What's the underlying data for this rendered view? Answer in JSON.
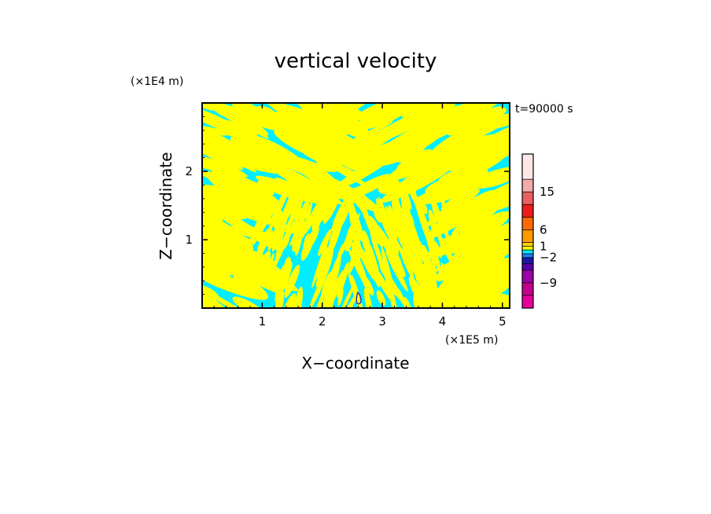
{
  "chart_data": {
    "type": "heatmap",
    "title": "vertical velocity",
    "xlabel": "X−coordinate",
    "ylabel": "Z−coordinate",
    "x_unit": "(×1E5 m)",
    "y_unit": "(×1E4 m)",
    "time_label": "t=90000 s",
    "xlim": [
      0,
      5.12
    ],
    "ylim": [
      0,
      3.0
    ],
    "x_ticks": [
      1,
      2,
      3,
      4,
      5
    ],
    "y_ticks": [
      1,
      2
    ],
    "x_tick_labels": [
      "1",
      "2",
      "3",
      "4",
      "5"
    ],
    "y_tick_labels": [
      "1",
      "2"
    ],
    "field_colors": {
      "positive": "#ffff00",
      "negative": "#00eeff",
      "strong_negative": "#3333cc"
    },
    "colorbar": {
      "levels_bottom_to_top": [
        {
          "color": "#e8009a"
        },
        {
          "color": "#c2008c"
        },
        {
          "color": "#9c00a8"
        },
        {
          "color": "#5a00a8"
        },
        {
          "color": "#1a1aa8"
        },
        {
          "color": "#1e7dff"
        },
        {
          "color": "#00eeff"
        },
        {
          "color": "#ffff00"
        },
        {
          "color": "#ffd200"
        },
        {
          "color": "#ff9a00"
        },
        {
          "color": "#ff6a00"
        },
        {
          "color": "#ee1c1c"
        },
        {
          "color": "#e86060"
        },
        {
          "color": "#f2aaaa"
        },
        {
          "color": "#fde8e8"
        }
      ],
      "tick_labels": [
        "15",
        "6",
        "1",
        "−2",
        "−9"
      ]
    }
  }
}
